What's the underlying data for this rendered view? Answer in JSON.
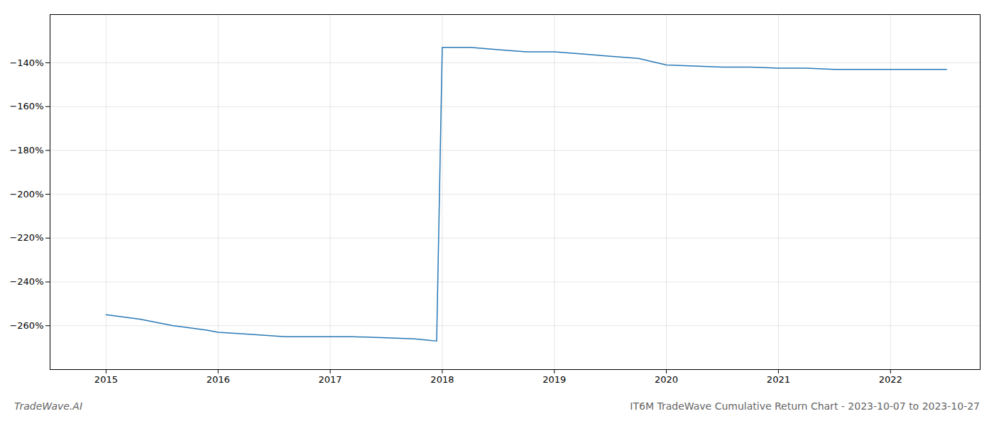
{
  "chart_data": {
    "type": "line",
    "title": "IT6M TradeWave Cumulative Return Chart - 2023-10-07 to 2023-10-27",
    "annotations": [
      "TradeWave.AI"
    ],
    "x": [
      2015.0,
      2015.3,
      2015.6,
      2015.9,
      2016.0,
      2016.3,
      2016.6,
      2016.9,
      2017.0,
      2017.2,
      2017.5,
      2017.75,
      2017.85,
      2017.95,
      2018.0,
      2018.25,
      2018.5,
      2018.75,
      2019.0,
      2019.25,
      2019.5,
      2019.75,
      2020.0,
      2020.25,
      2020.5,
      2020.75,
      2021.0,
      2021.25,
      2021.5,
      2021.75,
      2022.0,
      2022.25,
      2022.5
    ],
    "values": [
      -255,
      -257,
      -260,
      -262,
      -263,
      -264,
      -265,
      -265,
      -265,
      -265,
      -265.5,
      -266,
      -266.5,
      -267,
      -133,
      -133,
      -134,
      -135,
      -135,
      -136,
      -137,
      -138,
      -141,
      -141.5,
      -142,
      -142,
      -142.5,
      -142.5,
      -143,
      -143,
      -143,
      -143,
      -143
    ],
    "color": "#2878b5",
    "xlim": [
      2014.5,
      2022.8
    ],
    "ylim": [
      -280,
      -118
    ],
    "xticks": [
      2015,
      2016,
      2017,
      2018,
      2019,
      2020,
      2021,
      2022
    ],
    "yticks": [
      {
        "value": -140,
        "label": "−140%"
      },
      {
        "value": -160,
        "label": "−160%"
      },
      {
        "value": -180,
        "label": "−180%"
      },
      {
        "value": -200,
        "label": "−200%"
      },
      {
        "value": -220,
        "label": "−220%"
      },
      {
        "value": -240,
        "label": "−240%"
      },
      {
        "value": -260,
        "label": "−260%"
      }
    ],
    "grid": true
  }
}
